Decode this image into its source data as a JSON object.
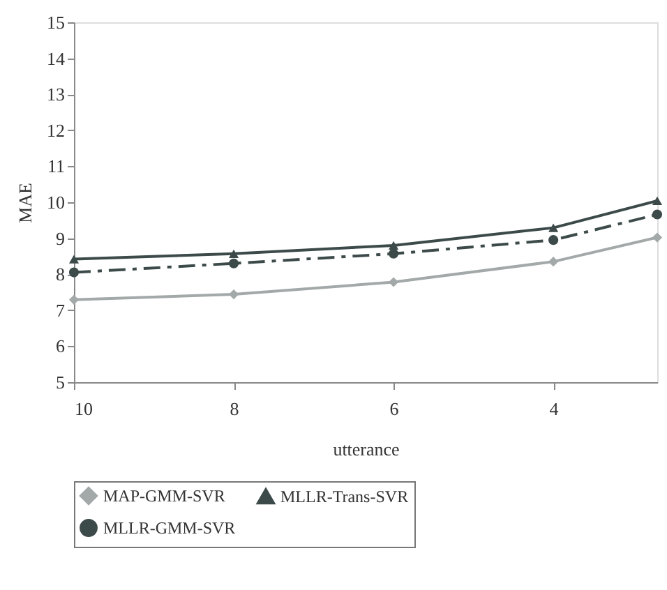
{
  "chart_data": {
    "type": "line",
    "xlabel": "utterance",
    "ylabel": "MAE",
    "x": [
      10,
      8,
      6,
      4,
      2.7
    ],
    "xlim": [
      10,
      2.7
    ],
    "xticks": [
      10,
      8,
      6,
      4
    ],
    "ylim": [
      5,
      15
    ],
    "yticks": [
      5,
      6,
      7,
      8,
      9,
      10,
      11,
      12,
      13,
      14,
      15
    ],
    "grid": false,
    "legend": "bottom",
    "series": [
      {
        "name": "MAP-GMM-SVR",
        "color": "#a3a8a8",
        "marker": "diamond",
        "line_style": "solid",
        "values": [
          7.29,
          7.44,
          7.78,
          8.35,
          9.02
        ]
      },
      {
        "name": "MLLR-Trans-SVR",
        "color": "#3d4a4a",
        "marker": "triangle",
        "line_style": "solid",
        "values": [
          8.42,
          8.57,
          8.8,
          9.29,
          10.04
        ]
      },
      {
        "name": "MLLR-GMM-SVR",
        "color": "#3d4a4a",
        "marker": "circle",
        "line_style": "dashed",
        "values": [
          8.05,
          8.3,
          8.57,
          8.95,
          9.66
        ]
      }
    ]
  }
}
